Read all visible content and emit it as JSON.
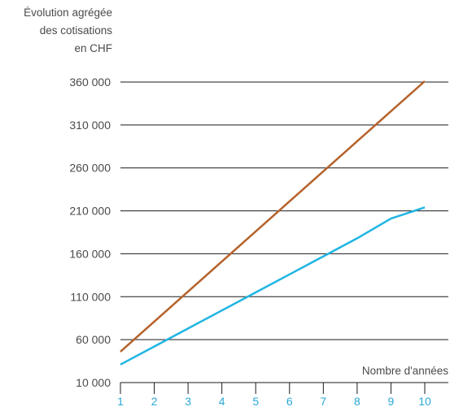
{
  "chart_data": {
    "type": "line",
    "title": "",
    "ylabel_lines": [
      "Évolution agrégée",
      "des cotisations",
      "en CHF"
    ],
    "xlabel": "Nombre d'années",
    "x": [
      1,
      2,
      3,
      4,
      5,
      6,
      7,
      8,
      9,
      10
    ],
    "ylim": [
      10000,
      360000
    ],
    "xlim": [
      1,
      10
    ],
    "yticks": [
      360000,
      310000,
      260000,
      210000,
      160000,
      110000,
      60000,
      10000
    ],
    "ytick_labels": [
      "360 000",
      "310 000",
      "260 000",
      "210 000",
      "160 000",
      "110 000",
      "60 000",
      "10 000"
    ],
    "xtick_labels": [
      "1",
      "2",
      "3",
      "4",
      "5",
      "6",
      "7",
      "8",
      "9",
      "10"
    ],
    "grid": "horizontal",
    "series": [
      {
        "color": "#b5622a",
        "values": [
          46000,
          81000,
          116000,
          151000,
          186000,
          221000,
          256000,
          291000,
          326000,
          361000
        ]
      },
      {
        "color": "#1fb5e3",
        "values": [
          31000,
          52000,
          73000,
          94000,
          115000,
          136000,
          157000,
          178000,
          201000,
          214000
        ]
      }
    ],
    "colors": {
      "axis_text": "#4a4a4a",
      "grid": "#1a1a1a",
      "tick_text_x": "#2aa9d6"
    }
  }
}
